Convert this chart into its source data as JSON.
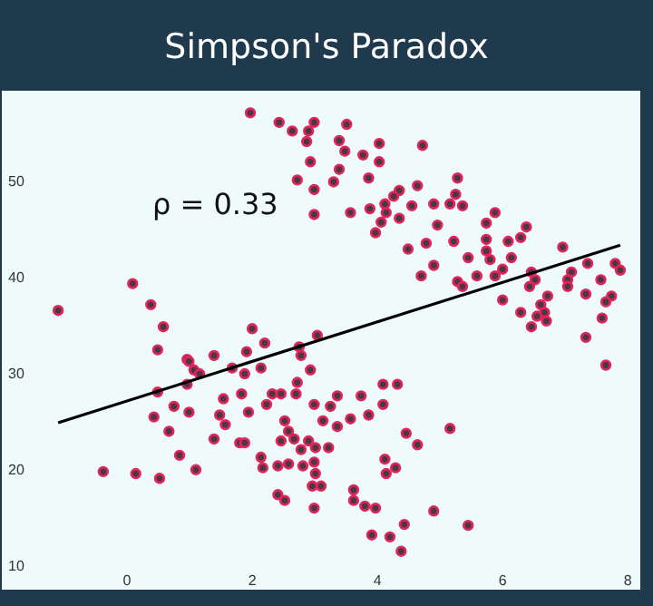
{
  "chart_data": {
    "type": "scatter",
    "title": "Simpson's Paradox",
    "annotations": [
      "ρ = 0.33"
    ],
    "xlim": [
      -2,
      8.2
    ],
    "ylim": [
      7.5,
      59.5
    ],
    "xticks": [
      0,
      2,
      4,
      6,
      8
    ],
    "yticks": [
      10,
      20,
      30,
      40,
      50
    ],
    "series": [
      {
        "marker": "circle",
        "color": "#e0245e",
        "x": [
          1.97,
          2.43,
          2.64,
          2.9,
          2.99,
          2.87,
          2.93,
          2.72,
          2.99,
          2.99,
          0.09,
          0.38,
          -1.1,
          0.58,
          0.49,
          2.0,
          2.2,
          1.91,
          1.39,
          0.96,
          2.75,
          3.04,
          3.51,
          3.39,
          3.48,
          4.03,
          3.77,
          4.03,
          4.72,
          3.39,
          3.3,
          3.86,
          5.28,
          4.64,
          5.25,
          4.35,
          4.26,
          4.12,
          3.88,
          4.14,
          4.55,
          4.9,
          5.16,
          5.36,
          3.57,
          4.35,
          4.06,
          3.97,
          4.96,
          5.88,
          5.74,
          6.38,
          6.29,
          5.74,
          6.09,
          5.22,
          4.49,
          4.78,
          5.74,
          6.96,
          5.45,
          5.8,
          6.14,
          4.9,
          6.0,
          5.59,
          5.88,
          4.7,
          5.28,
          5.36,
          7.36,
          7.1,
          7.8,
          7.88,
          6.46,
          6.52,
          6.43,
          7.04,
          7.04,
          6.72,
          7.33,
          7.57,
          7.74,
          7.65,
          6.0,
          6.29,
          6.61,
          6.67,
          6.55,
          6.7,
          7.59,
          6.46,
          7.33,
          0.99,
          1.07,
          1.16,
          1.68,
          1.88,
          2.14,
          2.78,
          2.93,
          0.96,
          0.49,
          1.83,
          2.72,
          2.7,
          2.32,
          2.46,
          0.75,
          0.99,
          1.54,
          2.23,
          1.94,
          2.99,
          0.43,
          1.48,
          1.57,
          2.52,
          3.13,
          2.58,
          0.67,
          1.39,
          1.8,
          1.88,
          2.46,
          2.67,
          2.9,
          2.78,
          3.01,
          2.14,
          0.84,
          2.17,
          2.41,
          2.58,
          2.81,
          2.99,
          3.01,
          -0.38,
          0.14,
          0.52,
          1.1,
          2.96,
          3.1,
          2.41,
          2.52,
          2.99,
          7.65,
          4.09,
          4.32,
          3.36,
          3.74,
          4.09,
          3.25,
          3.86,
          3.57,
          3.36,
          5.16,
          4.46,
          4.64,
          3.22,
          4.12,
          4.29,
          4.14,
          3.62,
          3.62,
          3.8,
          3.97,
          4.9,
          4.43,
          5.45,
          3.91,
          4.2,
          4.38
        ],
        "values": [
          57.2,
          56.2,
          55.3,
          55.3,
          56.2,
          54.2,
          52.1,
          50.2,
          49.2,
          46.6,
          39.4,
          37.2,
          36.6,
          34.9,
          32.5,
          34.7,
          33.2,
          32.3,
          31.9,
          31.5,
          32.8,
          34.0,
          56.0,
          54.3,
          53.2,
          54.0,
          52.8,
          52.1,
          53.8,
          51.3,
          50.0,
          50.4,
          50.4,
          49.6,
          48.7,
          49.1,
          48.5,
          47.7,
          47.2,
          46.8,
          47.5,
          47.7,
          47.7,
          47.5,
          46.8,
          46.2,
          45.8,
          44.7,
          45.5,
          46.8,
          45.7,
          45.3,
          44.2,
          44.0,
          43.8,
          43.8,
          43.0,
          43.6,
          42.8,
          43.2,
          42.1,
          41.9,
          42.1,
          41.3,
          40.9,
          40.2,
          40.2,
          40.2,
          39.6,
          39.1,
          41.5,
          40.6,
          41.5,
          40.8,
          40.6,
          39.8,
          39.1,
          39.8,
          39.1,
          38.1,
          38.3,
          39.8,
          38.1,
          37.5,
          37.7,
          36.4,
          37.2,
          36.4,
          36.0,
          35.5,
          35.8,
          34.9,
          33.8,
          31.3,
          30.4,
          30.0,
          30.6,
          30.0,
          30.6,
          31.9,
          30.4,
          28.9,
          28.1,
          27.9,
          29.1,
          27.9,
          27.9,
          27.9,
          26.6,
          26.0,
          27.4,
          26.8,
          26.0,
          26.8,
          25.5,
          25.7,
          24.7,
          25.1,
          25.1,
          24.0,
          24.0,
          23.2,
          22.8,
          22.8,
          23.0,
          23.2,
          23.0,
          22.1,
          22.3,
          21.3,
          21.5,
          20.2,
          20.4,
          20.6,
          20.4,
          20.8,
          19.6,
          19.8,
          19.6,
          19.1,
          20.0,
          18.3,
          18.3,
          17.4,
          16.8,
          16.0,
          30.9,
          28.9,
          28.9,
          27.7,
          27.7,
          26.8,
          26.6,
          25.7,
          25.3,
          24.5,
          24.3,
          23.8,
          22.6,
          22.3,
          21.1,
          20.2,
          19.6,
          17.9,
          16.8,
          16.2,
          16.0,
          15.7,
          14.3,
          14.2,
          13.2,
          13.0,
          11.5
        ]
      },
      {
        "type": "line",
        "color": "#000000",
        "x": [
          -1.1,
          7.88
        ],
        "values": [
          24.9,
          43.4
        ]
      }
    ]
  }
}
